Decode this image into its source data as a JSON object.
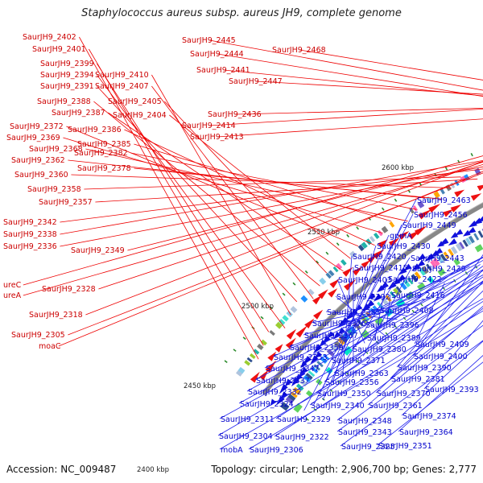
{
  "title": "Staphylococcus aureus subsp. aureus JH9, complete genome",
  "accession_text": "Accession: NC_009487",
  "summary_text": "Topology: circular; Length: 2,906,700 bp; Genes: 2,777",
  "scale_labels": [
    "2400 kbp",
    "2450 kbp",
    "2500 kbp",
    "2550 kbp",
    "2600 kbp"
  ],
  "forward_labels": [
    "SaurJH9_2402",
    "SaurJH9_2401",
    "SaurJH9_2399",
    "SaurJH9_2394",
    "SaurJH9_2410",
    "SaurJH9_2391",
    "SaurJH9_2407",
    "SaurJH9_2388",
    "SaurJH9_2405",
    "SaurJH9_2387",
    "SaurJH9_2404",
    "SaurJH9_2372",
    "SaurJH9_2386",
    "SaurJH9_2369",
    "SaurJH9_2385",
    "SaurJH9_2368",
    "SaurJH9_2382",
    "SaurJH9_2362",
    "SaurJH9_2378",
    "SaurJH9_2360",
    "SaurJH9_2358",
    "SaurJH9_2357",
    "SaurJH9_2342",
    "SaurJH9_2338",
    "SaurJH9_2336",
    "SaurJH9_2349",
    "ureC",
    "ureA",
    "SaurJH9_2328",
    "SaurJH9_2318",
    "SaurJH9_2305",
    "moaC",
    "SaurJH9_2445",
    "SaurJH9_2444",
    "SaurJH9_2441",
    "SaurJH9_2447",
    "SaurJH9_2468",
    "SaurJH9_2436",
    "SaurJH9_2414",
    "SaurJH9_2413"
  ],
  "reverse_labels": [
    "SaurJH9_2463",
    "SaurJH9_2456",
    "SaurJH9_2449",
    "gpmA",
    "SaurJH9_2430",
    "SaurJH9_2420",
    "SaurJH9_2443",
    "SaurJH9_2415",
    "SaurJH9_2439",
    "SaurJH9_2403",
    "SaurJH9_2422",
    "SaurJH9_2392",
    "SaurJH9_2416",
    "SaurJH9_2383",
    "SaurJH9_2408",
    "SaurJH9_2376",
    "SaurJH9_2396",
    "SaurJH9_2367",
    "SaurJH9_2389",
    "SaurJH9_2409",
    "SaurJH9_2359",
    "SaurJH9_2380",
    "SaurJH9_2353",
    "SaurJH9_2371",
    "SaurJH9_2400",
    "SaurJH9_2347",
    "SaurJH9_2363",
    "SaurJH9_2390",
    "SaurJH9_2337",
    "SaurJH9_2356",
    "SaurJH9_2381",
    "SaurJH9_2332",
    "SaurJH9_2350",
    "SaurJH9_2370",
    "SaurJH9_2393",
    "SaurJH9_2324",
    "SaurJH9_2340",
    "SaurJH9_2361",
    "SaurJH9_2311",
    "SaurJH9_2329",
    "SaurJH9_2348",
    "SaurJH9_2374",
    "SaurJH9_2304",
    "SaurJH9_2322",
    "SaurJH9_2343",
    "SaurJH9_2364",
    "mobA",
    "SaurJH9_2306",
    "SaurJH9_2325",
    "SaurJH9_2351"
  ],
  "colors": {
    "forward_gene": "#ee1111",
    "reverse_gene": "#1111dd",
    "backbone": "#888888",
    "forward_label": "#cc0000",
    "reverse_label": "#0000cc",
    "gc_tick": "#2a8a2a"
  }
}
